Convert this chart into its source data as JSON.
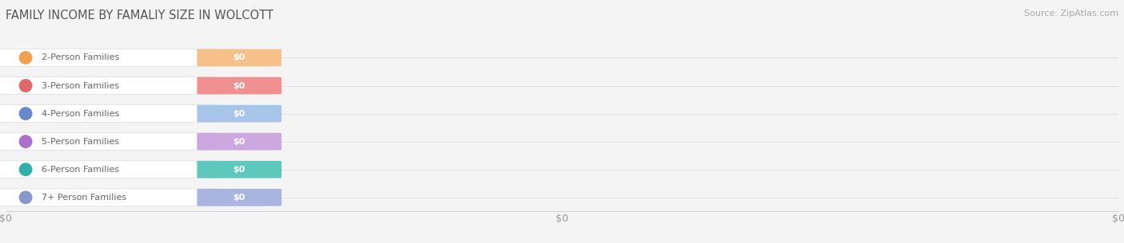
{
  "title": "FAMILY INCOME BY FAMALIY SIZE IN WOLCOTT",
  "source_text": "Source: ZipAtlas.com",
  "categories": [
    "2-Person Families",
    "3-Person Families",
    "4-Person Families",
    "5-Person Families",
    "6-Person Families",
    "7+ Person Families"
  ],
  "values": [
    0,
    0,
    0,
    0,
    0,
    0
  ],
  "bar_colors": [
    "#f5c08a",
    "#f09090",
    "#a8c4e8",
    "#cca8e0",
    "#5ec8be",
    "#aab4e0"
  ],
  "circle_colors": [
    "#f0a050",
    "#e06868",
    "#6888cc",
    "#aa70cc",
    "#30b0a8",
    "#8898cc"
  ],
  "label_color": "#666666",
  "value_label_color": "#ffffff",
  "background_color": "#f4f4f4",
  "bar_background": "#ffffff",
  "title_color": "#555555",
  "title_fontsize": 10.5,
  "source_fontsize": 8,
  "bar_value_label": "$0",
  "x_tick_labels": [
    "$0",
    "$0",
    "$0"
  ],
  "x_tick_positions": [
    0.0,
    0.5,
    1.0
  ],
  "cat_fontsize": 8,
  "val_fontsize": 8
}
